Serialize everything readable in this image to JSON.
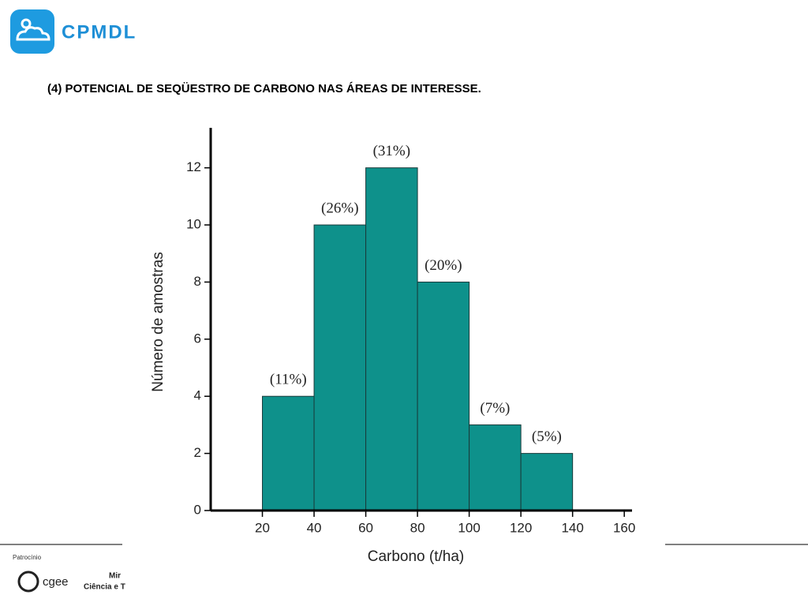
{
  "header": {
    "logo_text": "CPMDL",
    "title": "(4) POTENCIAL DE SEQÜESTRO DE CARBONO NAS ÁREAS DE INTERESSE."
  },
  "footer": {
    "sponsor": "Patrocínio",
    "cgee": "cgee",
    "ministry_line1": "Mir",
    "ministry_line2": "Ciência e T"
  },
  "chart_data": {
    "type": "histogram",
    "xlabel": "Carbono (t/ha)",
    "ylabel": "Número de amostras",
    "bins": [
      20,
      40,
      60,
      80,
      100,
      120,
      140
    ],
    "values": [
      4,
      10,
      12,
      8,
      3,
      2
    ],
    "percentages": [
      11,
      26,
      31,
      20,
      7,
      5
    ],
    "percentage_labels": [
      "(11%)",
      "(26%)",
      "(31%)",
      "(20%)",
      "(7%)",
      "(5%)"
    ],
    "color": "#0e918b",
    "xlim": [
      0,
      163
    ],
    "xticks": [
      20,
      40,
      60,
      80,
      100,
      120,
      140,
      160
    ],
    "ylim": [
      0,
      13.4
    ],
    "yticks": [
      0,
      2,
      4,
      6,
      8,
      10,
      12
    ]
  }
}
